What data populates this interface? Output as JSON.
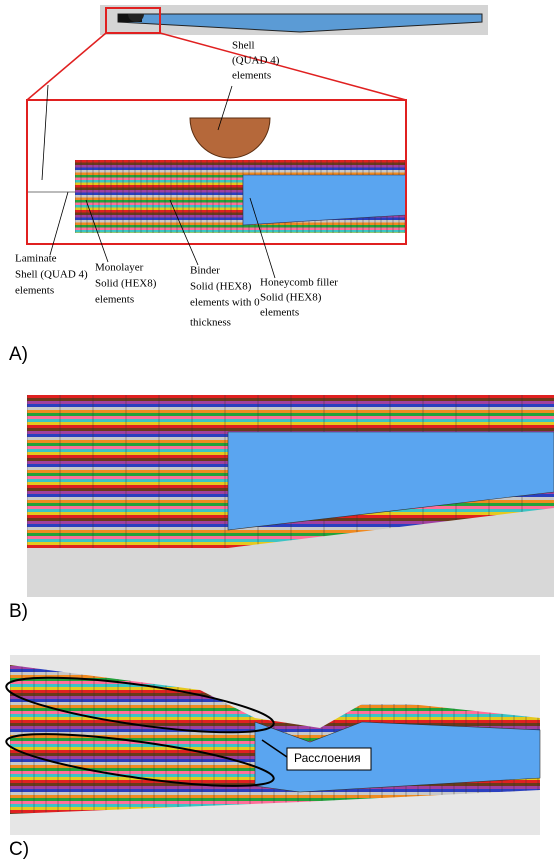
{
  "panels": [
    {
      "label": "A)",
      "annotations": [
        {
          "lines": [
            "Shell",
            "(QUAD 4)",
            "elements"
          ]
        },
        {
          "lines": [
            "Laminate",
            "Shell (QUAD 4)",
            "elements"
          ]
        },
        {
          "lines": [
            "Monolayer",
            "Solid (HEX8)",
            "elements"
          ]
        },
        {
          "lines": [
            "Binder",
            "Solid (HEX8)",
            "elements with 0",
            "thickness"
          ]
        },
        {
          "lines": [
            "Honeycomb filler",
            "Solid (HEX8)",
            "elements"
          ]
        }
      ]
    },
    {
      "label": "B)"
    },
    {
      "label": "C)",
      "annotations": [
        {
          "lines": [
            "Расслоения"
          ]
        }
      ]
    }
  ]
}
